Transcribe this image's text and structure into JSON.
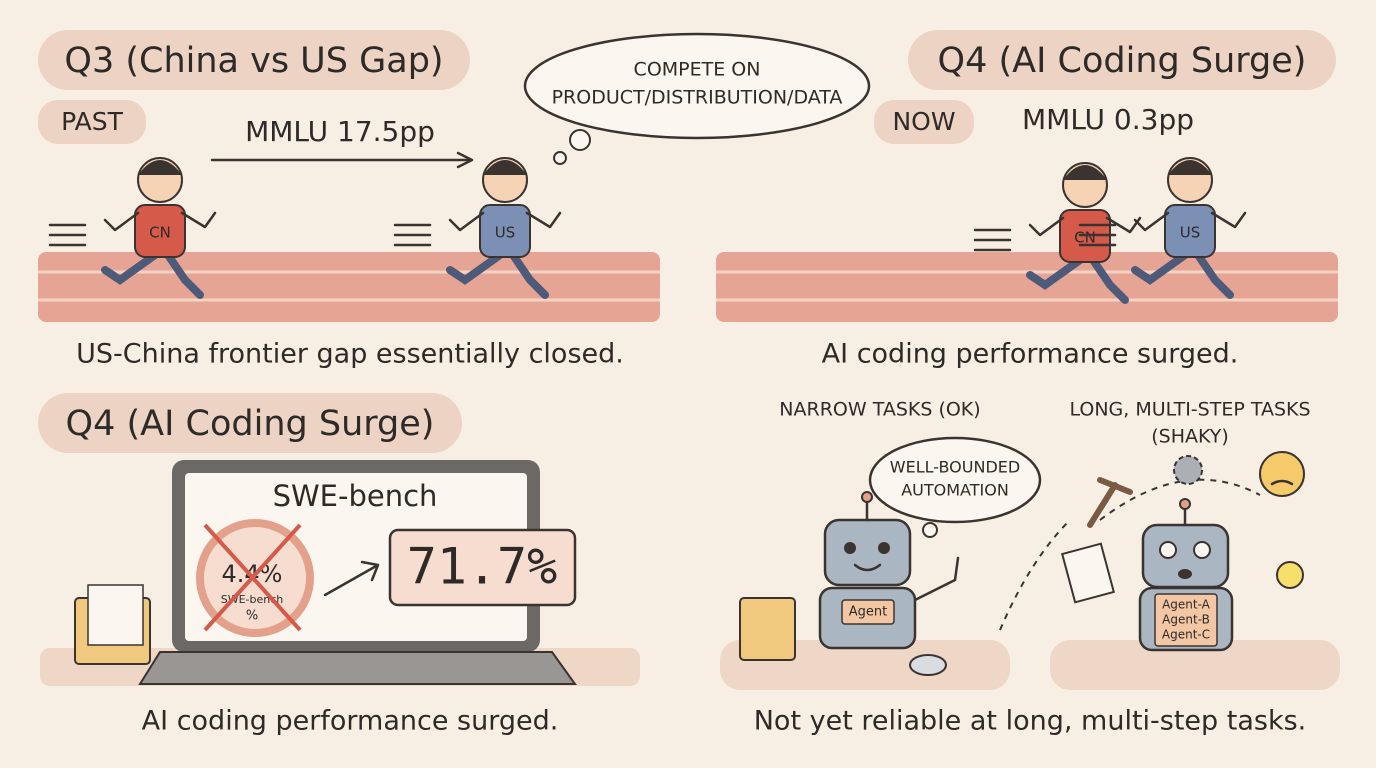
{
  "panels": [
    {
      "title": "Q3 (China vs US Gap)",
      "tag": "PAST",
      "metric": "MMLU 17.5pp",
      "thought": [
        "COMPETE ON",
        "PRODUCT/DISTRIBUTION/DATA"
      ],
      "runners": [
        "CN",
        "US"
      ],
      "caption": "US-China frontier gap essentially closed."
    },
    {
      "title": "Q4 (AI Coding Surge)",
      "tag": "NOW",
      "metric": "MMLU 0.3pp",
      "runners": [
        "CN",
        "US"
      ],
      "caption": "AI coding performance surged."
    },
    {
      "title": "Q4 (AI Coding Surge)",
      "screen_title": "SWE-bench",
      "old_score": "4.4%",
      "gauge_label": "SWE-bench",
      "gauge_unit": "%",
      "new_score": "71.7%",
      "caption": "AI coding performance surged."
    },
    {
      "narrow": "NARROW TASKS (OK)",
      "long": [
        "LONG, MULTI-STEP TASKS",
        "(SHAKY)"
      ],
      "thought": [
        "WELL-BOUNDED",
        "AUTOMATION"
      ],
      "agent": "Agent",
      "agents": [
        "Agent-A",
        "Agent-B",
        "Agent-C"
      ],
      "caption": "Not yet reliable at long, multi-step tasks."
    }
  ]
}
